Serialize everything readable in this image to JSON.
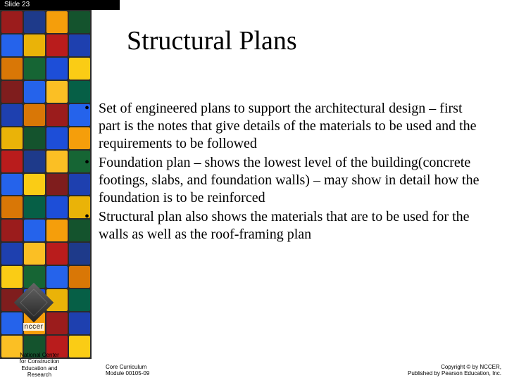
{
  "slide_tab": "Slide 23",
  "title": "Structural Plans",
  "bullets": [
    "Set of engineered plans to support the architectural design – first part is the notes that give details of the materials to be used and the requirements to be followed",
    "Foundation plan – shows the lowest level of the building(concrete footings, slabs, and foundation walls) – may show in detail how the foundation is to be reinforced",
    "Structural plan also shows the materials that are to be used for the walls as well as the roof-framing plan"
  ],
  "logo_label": "nccer",
  "footer": {
    "org_line1": "National Center",
    "org_line2": "for Construction",
    "org_line3": "Education and",
    "org_line4": "Research",
    "module_line1": "Core Curriculum",
    "module_line2": "Module 00105-09",
    "copyright_line1": "Copyright © by NCCER,",
    "copyright_line2": "Published by Pearson Education, Inc."
  },
  "mosaic_colors": [
    "#9b1c1c",
    "#1e3a8a",
    "#f59e0b",
    "#14532d",
    "#2563eb",
    "#eab308",
    "#b91c1c",
    "#1e40af",
    "#d97706",
    "#166534",
    "#1d4ed8",
    "#facc15",
    "#7f1d1d",
    "#2563eb",
    "#fbbf24",
    "#065f46",
    "#1e40af",
    "#d97706",
    "#9b1c1c",
    "#2563eb",
    "#eab308",
    "#14532d",
    "#1d4ed8",
    "#f59e0b",
    "#b91c1c",
    "#1e3a8a",
    "#fbbf24",
    "#166534",
    "#2563eb",
    "#facc15",
    "#7f1d1d",
    "#1e40af",
    "#d97706",
    "#065f46",
    "#1d4ed8",
    "#eab308",
    "#9b1c1c",
    "#2563eb",
    "#f59e0b",
    "#14532d",
    "#1e40af",
    "#fbbf24",
    "#b91c1c",
    "#1e3a8a",
    "#facc15",
    "#166534",
    "#2563eb",
    "#d97706",
    "#7f1d1d",
    "#1d4ed8",
    "#eab308",
    "#065f46",
    "#2563eb",
    "#f59e0b",
    "#9b1c1c",
    "#1e40af",
    "#fbbf24",
    "#14532d",
    "#b91c1c",
    "#facc15"
  ]
}
